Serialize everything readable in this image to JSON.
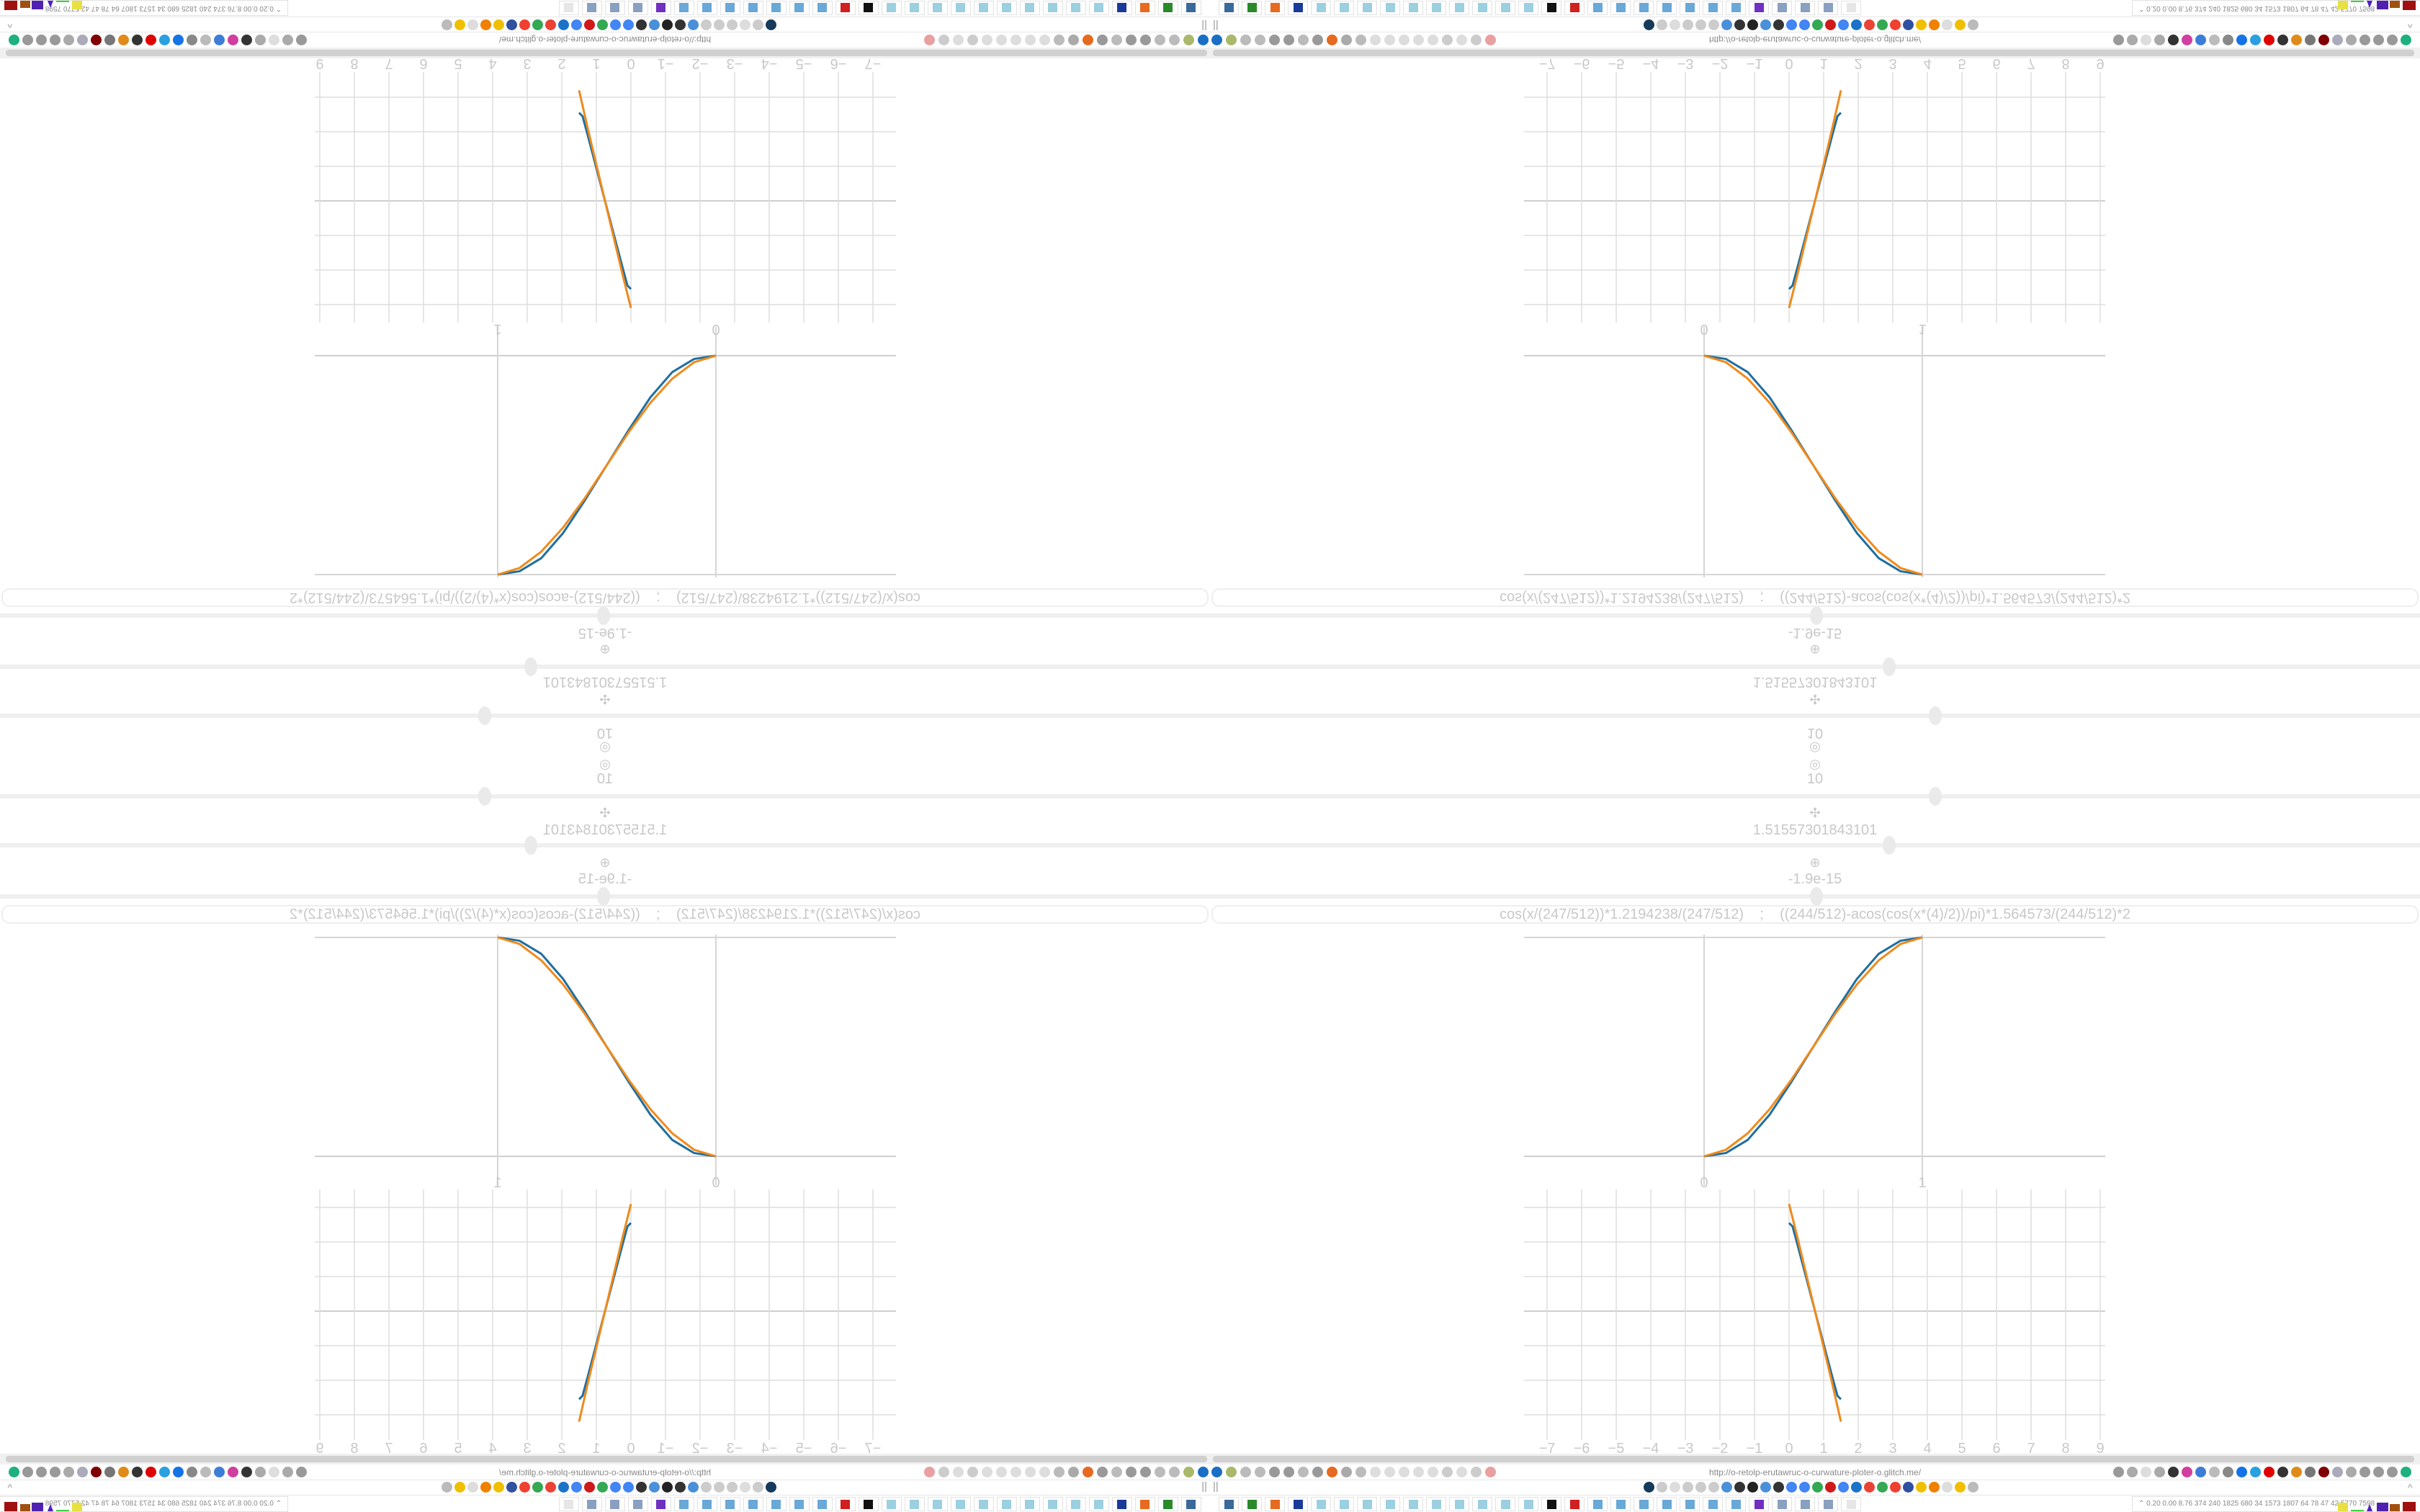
{
  "controls": {
    "icon_top": "◎",
    "count_value": "10",
    "move_icon_a": "✣",
    "value_a": "1.51557301843101",
    "move_icon_b": "⊕",
    "value_b": "-1.9e-15",
    "sliders": [
      {
        "name": "slider-count",
        "value_fraction": 0.6
      },
      {
        "name": "slider-a",
        "value_fraction": 0.56
      },
      {
        "name": "slider-b",
        "value_fraction": 0.5
      }
    ]
  },
  "formula_input": {
    "value": "cos(x/(247/512))*1.2194238/(247/512)    ;    ((244/512)-acos(cos(x*(4)/2))/pi)*1.564573/(244/512)*2"
  },
  "colors": {
    "series_blue": "#1f6f9f",
    "series_orange": "#f08a1c",
    "grid": "#d6d6d6",
    "text": "#c8c8c8"
  },
  "chart_data": [
    {
      "type": "line",
      "x_ticks": [
        "0",
        "1"
      ],
      "xlim": [
        -0.825,
        1.84
      ],
      "ylim": [
        0,
        1
      ],
      "grid": true,
      "series": [
        {
          "color": "#1f6f9f",
          "x": [
            0,
            0.1,
            0.2,
            0.3,
            0.4,
            0.5,
            0.6,
            0.7,
            0.8,
            0.9,
            1
          ],
          "y": [
            0,
            0.015,
            0.075,
            0.19,
            0.34,
            0.5,
            0.66,
            0.81,
            0.925,
            0.985,
            1
          ]
        },
        {
          "color": "#f08a1c",
          "x": [
            0,
            0.1,
            0.2,
            0.3,
            0.4,
            0.5,
            0.6,
            0.7,
            0.8,
            0.9,
            1
          ],
          "y": [
            0,
            0.03,
            0.105,
            0.215,
            0.35,
            0.5,
            0.65,
            0.785,
            0.895,
            0.97,
            1
          ]
        }
      ]
    },
    {
      "type": "line",
      "x_ticks": [
        "−7",
        "−6",
        "−5",
        "−4",
        "−3",
        "−2",
        "−1",
        "0",
        "1",
        "2",
        "3",
        "4",
        "5",
        "6",
        "7",
        "8",
        "9"
      ],
      "xlim": [
        -7.7,
        9.1
      ],
      "ylim": [
        -3.5,
        3.5
      ],
      "grid": true,
      "series": [
        {
          "color": "#1f6f9f",
          "x": [
            0,
            0.1,
            0.25,
            0.5,
            0.75,
            1,
            1.25,
            1.4,
            1.5
          ],
          "y": [
            2.55,
            2.45,
            1.9,
            0.95,
            0,
            -0.95,
            -1.9,
            -2.45,
            -2.55
          ]
        },
        {
          "color": "#f08a1c",
          "x": [
            0,
            0.25,
            0.5,
            0.75,
            1,
            1.25,
            1.5
          ],
          "y": [
            3.1,
            2.1,
            1.05,
            0,
            -1.05,
            -2.1,
            -3.2
          ]
        }
      ]
    }
  ],
  "browser": {
    "url": "http://o-retolp-erutawruc-o-curwature-ploter-o.glitch.me/",
    "toolbar_left_icons": [
      {
        "name": "filter-icon",
        "color": "#1a6fc4"
      },
      {
        "name": "extension-green-icon",
        "color": "#a9b86a"
      },
      {
        "name": "globe-icon",
        "color": "#bbb"
      },
      {
        "name": "globe-icon",
        "color": "#bbb"
      },
      {
        "name": "headphones-icon",
        "color": "#999"
      },
      {
        "name": "headphones-icon",
        "color": "#999"
      },
      {
        "name": "globe-icon",
        "color": "#bbb"
      },
      {
        "name": "wrench-icon",
        "color": "#999"
      },
      {
        "name": "firefox-icon",
        "color": "#e66a1f"
      },
      {
        "name": "gear-icon",
        "color": "#aaa"
      },
      {
        "name": "globe-icon",
        "color": "#bbb"
      },
      {
        "name": "dot-icon",
        "color": "#ddd"
      },
      {
        "name": "circle-icon",
        "color": "#ddd"
      },
      {
        "name": "dot-icon",
        "color": "#ddd"
      },
      {
        "name": "circle-icon",
        "color": "#ddd"
      },
      {
        "name": "dot-icon",
        "color": "#ddd"
      },
      {
        "name": "folder-icon",
        "color": "#ccc"
      },
      {
        "name": "back-arrow-icon",
        "color": "#ddd"
      },
      {
        "name": "shield-icon",
        "color": "#ccc"
      },
      {
        "name": "lock-slash-icon",
        "color": "#e9a0a0"
      }
    ],
    "toolbar_right_icons": [
      {
        "name": "translate-icon",
        "color": "#999"
      },
      {
        "name": "star-icon",
        "color": "#aaa"
      },
      {
        "name": "forward-arrow-icon",
        "color": "#ddd"
      },
      {
        "name": "reload-icon",
        "color": "#aaa"
      },
      {
        "name": "download-icon",
        "color": "#333"
      },
      {
        "name": "color-picker-icon",
        "color": "#d03fa0"
      },
      {
        "name": "translate-blue-icon",
        "color": "#3d7dd8"
      },
      {
        "name": "mouse-icon",
        "color": "#bbb"
      },
      {
        "name": "gear-icon",
        "color": "#888"
      },
      {
        "name": "plus-circle-icon",
        "color": "#1473e6"
      },
      {
        "name": "download-circle-icon",
        "color": "#2aa0e0"
      },
      {
        "name": "record-icon",
        "color": "#e00000"
      },
      {
        "name": "trash-icon",
        "color": "#333"
      },
      {
        "name": "share-icon",
        "color": "#e08a1a"
      },
      {
        "name": "archive-icon",
        "color": "#777"
      },
      {
        "name": "ublock-icon",
        "color": "#800000"
      },
      {
        "name": "shield-icon",
        "color": "#aab"
      },
      {
        "name": "globe-icon",
        "color": "#aaa"
      },
      {
        "name": "puzzle-icon",
        "color": "#999"
      },
      {
        "name": "wrench-icon",
        "color": "#999"
      },
      {
        "name": "settings-icon",
        "color": "#999"
      },
      {
        "name": "status-dot-icon",
        "color": "#1fb080"
      }
    ],
    "bookmark_icons": [
      {
        "name": "bookmark-dark-circle-icon",
        "color": "#163a5a"
      },
      {
        "name": "mute-icon",
        "color": "#ccc"
      },
      {
        "name": "cc-icon",
        "color": "#ddd"
      },
      {
        "name": "mute-icon",
        "color": "#ccc"
      },
      {
        "name": "mute-icon",
        "color": "#ccc"
      },
      {
        "name": "mute-circle-icon",
        "color": "#ccc"
      },
      {
        "name": "globe-blue-icon",
        "color": "#4a90d9"
      },
      {
        "name": "wikipedia-icon",
        "color": "#333"
      },
      {
        "name": "chart-dark-icon",
        "color": "#222"
      },
      {
        "name": "globe-blue-icon",
        "color": "#4a90d9"
      },
      {
        "name": "museum-icon",
        "color": "#333"
      },
      {
        "name": "translate-g-icon",
        "color": "#4285f4"
      },
      {
        "name": "google-icon",
        "color": "#4285f4"
      },
      {
        "name": "google-icon",
        "color": "#34a853"
      },
      {
        "name": "red-gear-icon",
        "color": "#d01a1a"
      },
      {
        "name": "google-icon",
        "color": "#4285f4"
      },
      {
        "name": "blue-drop-icon",
        "color": "#1a73c8"
      },
      {
        "name": "google-icon",
        "color": "#ea4335"
      },
      {
        "name": "google-icon",
        "color": "#34a853"
      },
      {
        "name": "yandex-icon",
        "color": "#f04030"
      },
      {
        "name": "grid-icon",
        "color": "#3050a0"
      },
      {
        "name": "image-icon",
        "color": "#f0c000"
      },
      {
        "name": "sun-icon",
        "color": "#f08000"
      },
      {
        "name": "cc-icon",
        "color": "#ddd"
      },
      {
        "name": "image-icon",
        "color": "#f0c000"
      },
      {
        "name": "hourglass-icon",
        "color": "#bbb"
      }
    ],
    "bookmark_toggle": "||",
    "collapse_icon": "^"
  },
  "taskbar": {
    "buttons": [
      {
        "name": "remote-desktop-icon",
        "color": "#3a6a9a"
      },
      {
        "name": "terminal-icon",
        "color": "#2a8a2a"
      },
      {
        "name": "firefox-icon",
        "color": "#e66a1f"
      },
      {
        "name": "floppy-64-icon",
        "color": "#1a3a9a"
      },
      {
        "name": "notepad-icon",
        "color": "#9ccfe0"
      },
      {
        "name": "notepad-icon",
        "color": "#9ccfe0"
      },
      {
        "name": "notepad-icon",
        "color": "#9ccfe0"
      },
      {
        "name": "notepad-icon",
        "color": "#9ccfe0"
      },
      {
        "name": "notepad-icon",
        "color": "#9ccfe0"
      },
      {
        "name": "notepad-icon",
        "color": "#9ccfe0"
      },
      {
        "name": "notepad-icon",
        "color": "#9ccfe0"
      },
      {
        "name": "notepad-icon",
        "color": "#9ccfe0"
      },
      {
        "name": "notepad-icon",
        "color": "#9ccfe0"
      },
      {
        "name": "notepad-icon",
        "color": "#9ccfe0"
      },
      {
        "name": "inkscape-icon",
        "color": "#111"
      },
      {
        "name": "red-app-icon",
        "color": "#d02020"
      },
      {
        "name": "calculator-icon",
        "color": "#6aa8d8"
      },
      {
        "name": "calculator-icon",
        "color": "#6aa8d8"
      },
      {
        "name": "calculator-icon",
        "color": "#6aa8d8"
      },
      {
        "name": "calculator-icon",
        "color": "#6aa8d8"
      },
      {
        "name": "calculator-icon",
        "color": "#6aa8d8"
      },
      {
        "name": "calculator-icon",
        "color": "#6aa8d8"
      },
      {
        "name": "calculator-icon",
        "color": "#6aa8d8"
      },
      {
        "name": "purple-app-icon",
        "color": "#7030c0"
      },
      {
        "name": "scroll-icon",
        "color": "#8aa0c0"
      },
      {
        "name": "scroll-icon",
        "color": "#8aa0c0"
      },
      {
        "name": "scroll-icon",
        "color": "#8aa0c0"
      },
      {
        "name": "faded-app-icon",
        "color": "#e6e6e6"
      }
    ],
    "tray_chevron": "⌃",
    "tray_stats": "0.20 0.00 8.76  374  240 1825 680   34  1573 1807  64   78   47   42  5770 7598"
  }
}
